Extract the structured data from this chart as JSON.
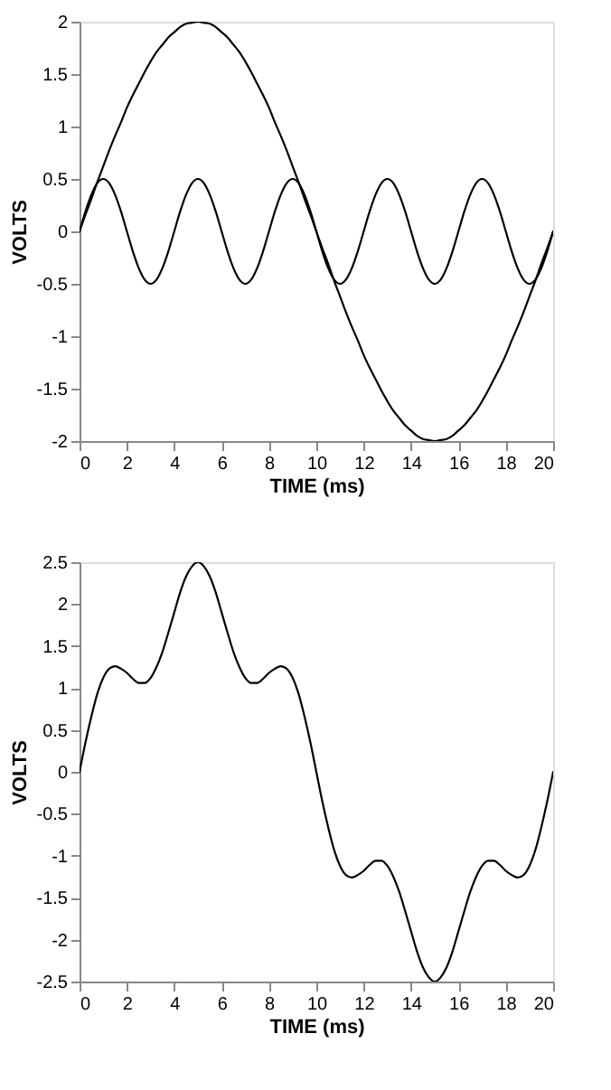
{
  "chart_data": [
    {
      "type": "line",
      "xlabel": "TIME (ms)",
      "ylabel": "VOLTS",
      "xlim": [
        0,
        20
      ],
      "ylim": [
        -2,
        2
      ],
      "xticks": [
        0,
        2,
        4,
        6,
        8,
        10,
        12,
        14,
        16,
        18,
        20
      ],
      "yticks": [
        -2,
        -1.5,
        -1,
        -0.5,
        0,
        0.5,
        1,
        1.5,
        2
      ],
      "grid": false,
      "legend": false,
      "marker": "none",
      "line_style": "solid",
      "x": [
        0,
        0.25,
        0.5,
        0.75,
        1,
        1.25,
        1.5,
        1.75,
        2,
        2.25,
        2.5,
        2.75,
        3,
        3.25,
        3.5,
        3.75,
        4,
        4.25,
        4.5,
        4.75,
        5,
        5.25,
        5.5,
        5.75,
        6,
        6.25,
        6.5,
        6.75,
        7,
        7.25,
        7.5,
        7.75,
        8,
        8.25,
        8.5,
        8.75,
        9,
        9.25,
        9.5,
        9.75,
        10,
        10.25,
        10.5,
        10.75,
        11,
        11.25,
        11.5,
        11.75,
        12,
        12.25,
        12.5,
        12.75,
        13,
        13.25,
        13.5,
        13.75,
        14,
        14.25,
        14.5,
        14.75,
        15,
        15.25,
        15.5,
        15.75,
        16,
        16.25,
        16.5,
        16.75,
        17,
        17.25,
        17.5,
        17.75,
        18,
        18.25,
        18.5,
        18.75,
        19,
        19.25,
        19.5,
        19.75,
        20
      ],
      "series": [
        {
          "color": "#000000",
          "values": [
            0,
            0.16,
            0.31,
            0.47,
            0.62,
            0.77,
            0.91,
            1.04,
            1.18,
            1.3,
            1.41,
            1.52,
            1.62,
            1.71,
            1.78,
            1.85,
            1.9,
            1.95,
            1.98,
            1.99,
            2,
            1.99,
            1.98,
            1.95,
            1.9,
            1.85,
            1.78,
            1.71,
            1.62,
            1.52,
            1.41,
            1.3,
            1.18,
            1.04,
            0.91,
            0.77,
            0.62,
            0.47,
            0.31,
            0.16,
            0,
            -0.16,
            -0.31,
            -0.47,
            -0.62,
            -0.77,
            -0.91,
            -1.04,
            -1.18,
            -1.3,
            -1.41,
            -1.52,
            -1.62,
            -1.71,
            -1.78,
            -1.85,
            -1.9,
            -1.95,
            -1.98,
            -1.99,
            -2,
            -1.99,
            -1.98,
            -1.95,
            -1.9,
            -1.85,
            -1.78,
            -1.71,
            -1.62,
            -1.52,
            -1.41,
            -1.3,
            -1.18,
            -1.04,
            -0.91,
            -0.77,
            -0.62,
            -0.47,
            -0.31,
            -0.16,
            0
          ]
        },
        {
          "color": "#000000",
          "values": [
            0,
            0.19,
            0.35,
            0.46,
            0.5,
            0.46,
            0.35,
            0.19,
            0,
            -0.19,
            -0.35,
            -0.46,
            -0.5,
            -0.46,
            -0.35,
            -0.19,
            0,
            0.19,
            0.35,
            0.46,
            0.5,
            0.46,
            0.35,
            0.19,
            0,
            -0.19,
            -0.35,
            -0.46,
            -0.5,
            -0.46,
            -0.35,
            -0.19,
            0,
            0.19,
            0.35,
            0.46,
            0.5,
            0.46,
            0.35,
            0.19,
            0,
            -0.19,
            -0.35,
            -0.46,
            -0.5,
            -0.46,
            -0.35,
            -0.19,
            0,
            0.19,
            0.35,
            0.46,
            0.5,
            0.46,
            0.35,
            0.19,
            0,
            -0.19,
            -0.35,
            -0.46,
            -0.5,
            -0.46,
            -0.35,
            -0.19,
            0,
            0.19,
            0.35,
            0.46,
            0.5,
            0.46,
            0.35,
            0.19,
            0,
            -0.19,
            -0.35,
            -0.46,
            -0.5,
            -0.46,
            -0.35,
            -0.19,
            0
          ]
        }
      ]
    },
    {
      "type": "line",
      "xlabel": "TIME (ms)",
      "ylabel": "VOLTS",
      "xlim": [
        0,
        20
      ],
      "ylim": [
        -2.5,
        2.5
      ],
      "xticks": [
        0,
        2,
        4,
        6,
        8,
        10,
        12,
        14,
        16,
        18,
        20
      ],
      "yticks": [
        -2.5,
        -2,
        -1.5,
        -1,
        -0.5,
        0,
        0.5,
        1,
        1.5,
        2,
        2.5
      ],
      "grid": false,
      "legend": false,
      "marker": "none",
      "line_style": "solid",
      "x": [
        0,
        0.25,
        0.5,
        0.75,
        1,
        1.25,
        1.5,
        1.75,
        2,
        2.25,
        2.5,
        2.75,
        3,
        3.25,
        3.5,
        3.75,
        4,
        4.25,
        4.5,
        4.75,
        5,
        5.25,
        5.5,
        5.75,
        6,
        6.25,
        6.5,
        6.75,
        7,
        7.25,
        7.5,
        7.75,
        8,
        8.25,
        8.5,
        8.75,
        9,
        9.25,
        9.5,
        9.75,
        10,
        10.25,
        10.5,
        10.75,
        11,
        11.25,
        11.5,
        11.75,
        12,
        12.25,
        12.5,
        12.75,
        13,
        13.25,
        13.5,
        13.75,
        14,
        14.25,
        14.5,
        14.75,
        15,
        15.25,
        15.5,
        15.75,
        16,
        16.25,
        16.5,
        16.75,
        17,
        17.25,
        17.5,
        17.75,
        18,
        18.25,
        18.5,
        18.75,
        19,
        19.25,
        19.5,
        19.75,
        20
      ],
      "series": [
        {
          "color": "#000000",
          "values": [
            0,
            0.35,
            0.66,
            0.93,
            1.12,
            1.23,
            1.26,
            1.23,
            1.18,
            1.11,
            1.06,
            1.06,
            1.12,
            1.25,
            1.43,
            1.66,
            1.9,
            2.14,
            2.33,
            2.45,
            2.5,
            2.45,
            2.33,
            2.14,
            1.9,
            1.66,
            1.43,
            1.25,
            1.12,
            1.06,
            1.06,
            1.11,
            1.18,
            1.23,
            1.26,
            1.23,
            1.12,
            0.93,
            0.66,
            0.35,
            0,
            -0.35,
            -0.66,
            -0.93,
            -1.12,
            -1.23,
            -1.26,
            -1.23,
            -1.18,
            -1.11,
            -1.06,
            -1.06,
            -1.12,
            -1.25,
            -1.43,
            -1.66,
            -1.9,
            -2.14,
            -2.33,
            -2.45,
            -2.5,
            -2.45,
            -2.33,
            -2.14,
            -1.9,
            -1.66,
            -1.43,
            -1.25,
            -1.12,
            -1.06,
            -1.06,
            -1.11,
            -1.18,
            -1.23,
            -1.26,
            -1.23,
            -1.12,
            -0.93,
            -0.66,
            -0.35,
            0
          ]
        }
      ]
    }
  ]
}
